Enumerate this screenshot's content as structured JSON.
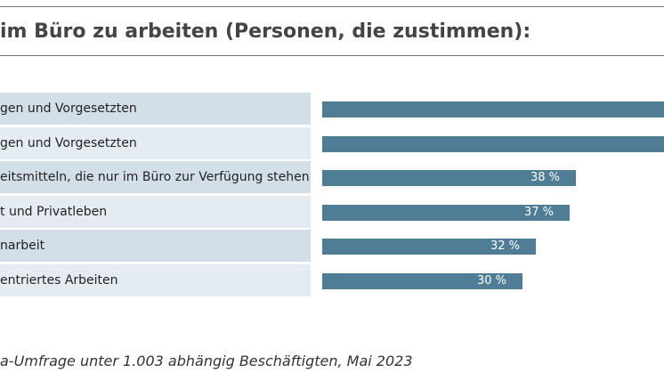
{
  "title": "im Büro zu arbeiten (Personen, die zustimmen):",
  "source": "a-Umfrage unter 1.003 abhängig Beschäftigten, Mai 2023",
  "colors": {
    "bar": "#4e7d95",
    "row_dark": "#d2dfe8",
    "row_light": "#e4ecf2",
    "rule": "#707070"
  },
  "chart_data": {
    "type": "bar",
    "orientation": "horizontal",
    "categories": [
      "gen und Vorgesetzten",
      "gen und Vorgesetzten",
      "eitsmitteln, die nur im Büro zur Verfügung stehen",
      "t und Privatleben",
      "narbeit",
      "entriertes Arbeiten"
    ],
    "values": [
      null,
      null,
      38,
      37,
      32,
      30
    ],
    "value_labels": [
      "",
      "",
      "38 %",
      "37 %",
      "32 %",
      "30 %"
    ],
    "xlim": [
      0,
      100
    ],
    "grid": false
  }
}
